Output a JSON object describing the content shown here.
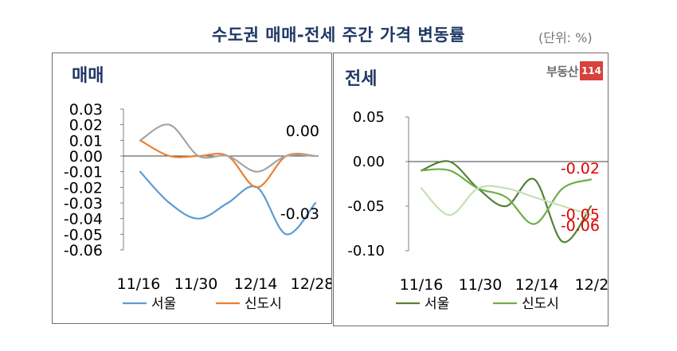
{
  "title": "수도권 매매-전세 주간 가격 변동률",
  "unit": "(단위: %)",
  "logo": {
    "text": "부동산",
    "box": "114"
  },
  "colors": {
    "title": "#1f3864",
    "seoul_left": "#5b9bd5",
    "newtown_left": "#ed7d31",
    "gray_left": "#a5a5a5",
    "seoul_right": "#548235",
    "newtown_right": "#70ad47",
    "newtown_right_pale": "#c5e0b4",
    "red_label": "#e00000",
    "logo_red": "#d9413a"
  },
  "chart_data": [
    {
      "panel_title": "매매",
      "type": "line",
      "x": [
        "11/16",
        "11/23",
        "11/30",
        "12/7",
        "12/14",
        "12/21",
        "12/28"
      ],
      "x_tick_labels": [
        "11/16",
        "11/30",
        "12/14",
        "12/28"
      ],
      "ylim": [
        -0.06,
        0.03
      ],
      "y_ticks": [
        0.03,
        0.02,
        0.01,
        0.0,
        -0.01,
        -0.02,
        -0.03,
        -0.04,
        -0.05,
        -0.06
      ],
      "y_tick_labels": [
        "0.03",
        "0.02",
        "0.01",
        "0.00",
        "-0.01",
        "-0.02",
        "-0.03",
        "-0.04",
        "-0.05",
        "-0.06"
      ],
      "series": [
        {
          "name": "서울",
          "color": "#5b9bd5",
          "values": [
            -0.01,
            -0.03,
            -0.04,
            -0.03,
            -0.02,
            -0.05,
            -0.03
          ],
          "in_legend": true
        },
        {
          "name": "신도시",
          "color": "#ed7d31",
          "values": [
            0.01,
            0.0,
            0.0,
            0.0,
            -0.02,
            0.0,
            0.0
          ],
          "in_legend": true
        },
        {
          "color": "#a5a5a5",
          "values": [
            0.01,
            0.02,
            0.0,
            0.0,
            -0.01,
            0.0,
            0.0
          ],
          "in_legend": false
        }
      ],
      "annotations": [
        "0.00",
        "-0.03"
      ]
    },
    {
      "panel_title": "전세",
      "type": "line",
      "x": [
        "11/16",
        "11/23",
        "11/30",
        "12/7",
        "12/14",
        "12/21",
        "12/28"
      ],
      "x_tick_labels": [
        "11/16",
        "11/30",
        "12/14",
        "12/28"
      ],
      "ylim": [
        -0.1,
        0.05
      ],
      "y_ticks": [
        0.05,
        0.0,
        -0.05,
        -0.1
      ],
      "y_tick_labels": [
        "0.05",
        "0.00",
        "-0.05",
        "-0.10"
      ],
      "series": [
        {
          "name": "서울",
          "color": "#548235",
          "values": [
            -0.01,
            0.0,
            -0.03,
            -0.05,
            -0.02,
            -0.09,
            -0.05
          ],
          "in_legend": true
        },
        {
          "name": "신도시",
          "color": "#70ad47",
          "values": [
            -0.01,
            -0.01,
            -0.03,
            -0.04,
            -0.07,
            -0.03,
            -0.02
          ],
          "in_legend": true
        },
        {
          "color": "#c5e0b4",
          "values": [
            -0.03,
            -0.06,
            -0.03,
            -0.03,
            -0.04,
            -0.05,
            -0.06
          ],
          "in_legend": false
        }
      ],
      "annotations": [
        "-0.02",
        "-0.05",
        "-0.06"
      ]
    }
  ]
}
